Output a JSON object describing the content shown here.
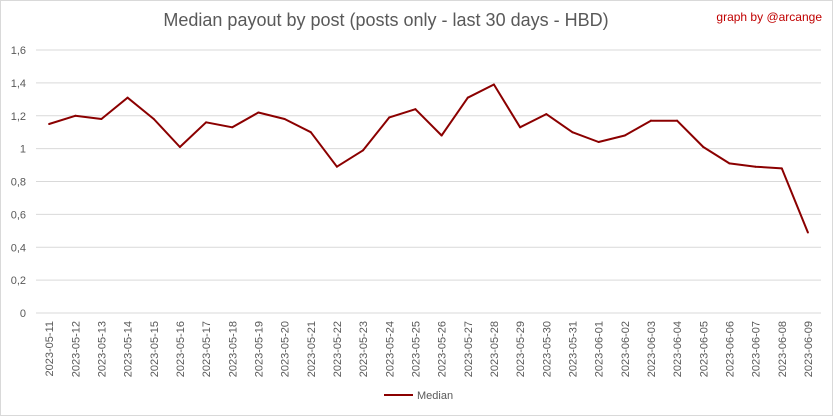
{
  "header": {
    "title": "Median payout by post (posts only - last 30 days - HBD)",
    "credit": "graph by @arcange"
  },
  "chart_data": {
    "type": "line",
    "title": "Median payout by post (posts only - last 30 days - HBD)",
    "xlabel": "",
    "ylabel": "",
    "ylim": [
      0,
      1.6
    ],
    "yticks": [
      "0",
      "0,2",
      "0,4",
      "0,6",
      "0,8",
      "1",
      "1,2",
      "1,4",
      "1,6"
    ],
    "grid": true,
    "legend_position": "bottom",
    "color": "#8b0000",
    "categories": [
      "2023-05-11",
      "2023-05-12",
      "2023-05-13",
      "2023-05-14",
      "2023-05-15",
      "2023-05-16",
      "2023-05-17",
      "2023-05-18",
      "2023-05-19",
      "2023-05-20",
      "2023-05-21",
      "2023-05-22",
      "2023-05-23",
      "2023-05-24",
      "2023-05-25",
      "2023-05-26",
      "2023-05-27",
      "2023-05-28",
      "2023-05-29",
      "2023-05-30",
      "2023-05-31",
      "2023-06-01",
      "2023-06-02",
      "2023-06-03",
      "2023-06-04",
      "2023-06-05",
      "2023-06-06",
      "2023-06-07",
      "2023-06-08",
      "2023-06-09"
    ],
    "series": [
      {
        "name": "Median",
        "values": [
          1.15,
          1.2,
          1.18,
          1.31,
          1.18,
          1.01,
          1.16,
          1.13,
          1.22,
          1.18,
          1.1,
          0.89,
          0.99,
          1.19,
          1.24,
          1.08,
          1.31,
          1.39,
          1.13,
          1.21,
          1.1,
          1.04,
          1.08,
          1.17,
          1.17,
          1.01,
          0.91,
          0.89,
          0.88,
          0.49
        ]
      }
    ]
  }
}
